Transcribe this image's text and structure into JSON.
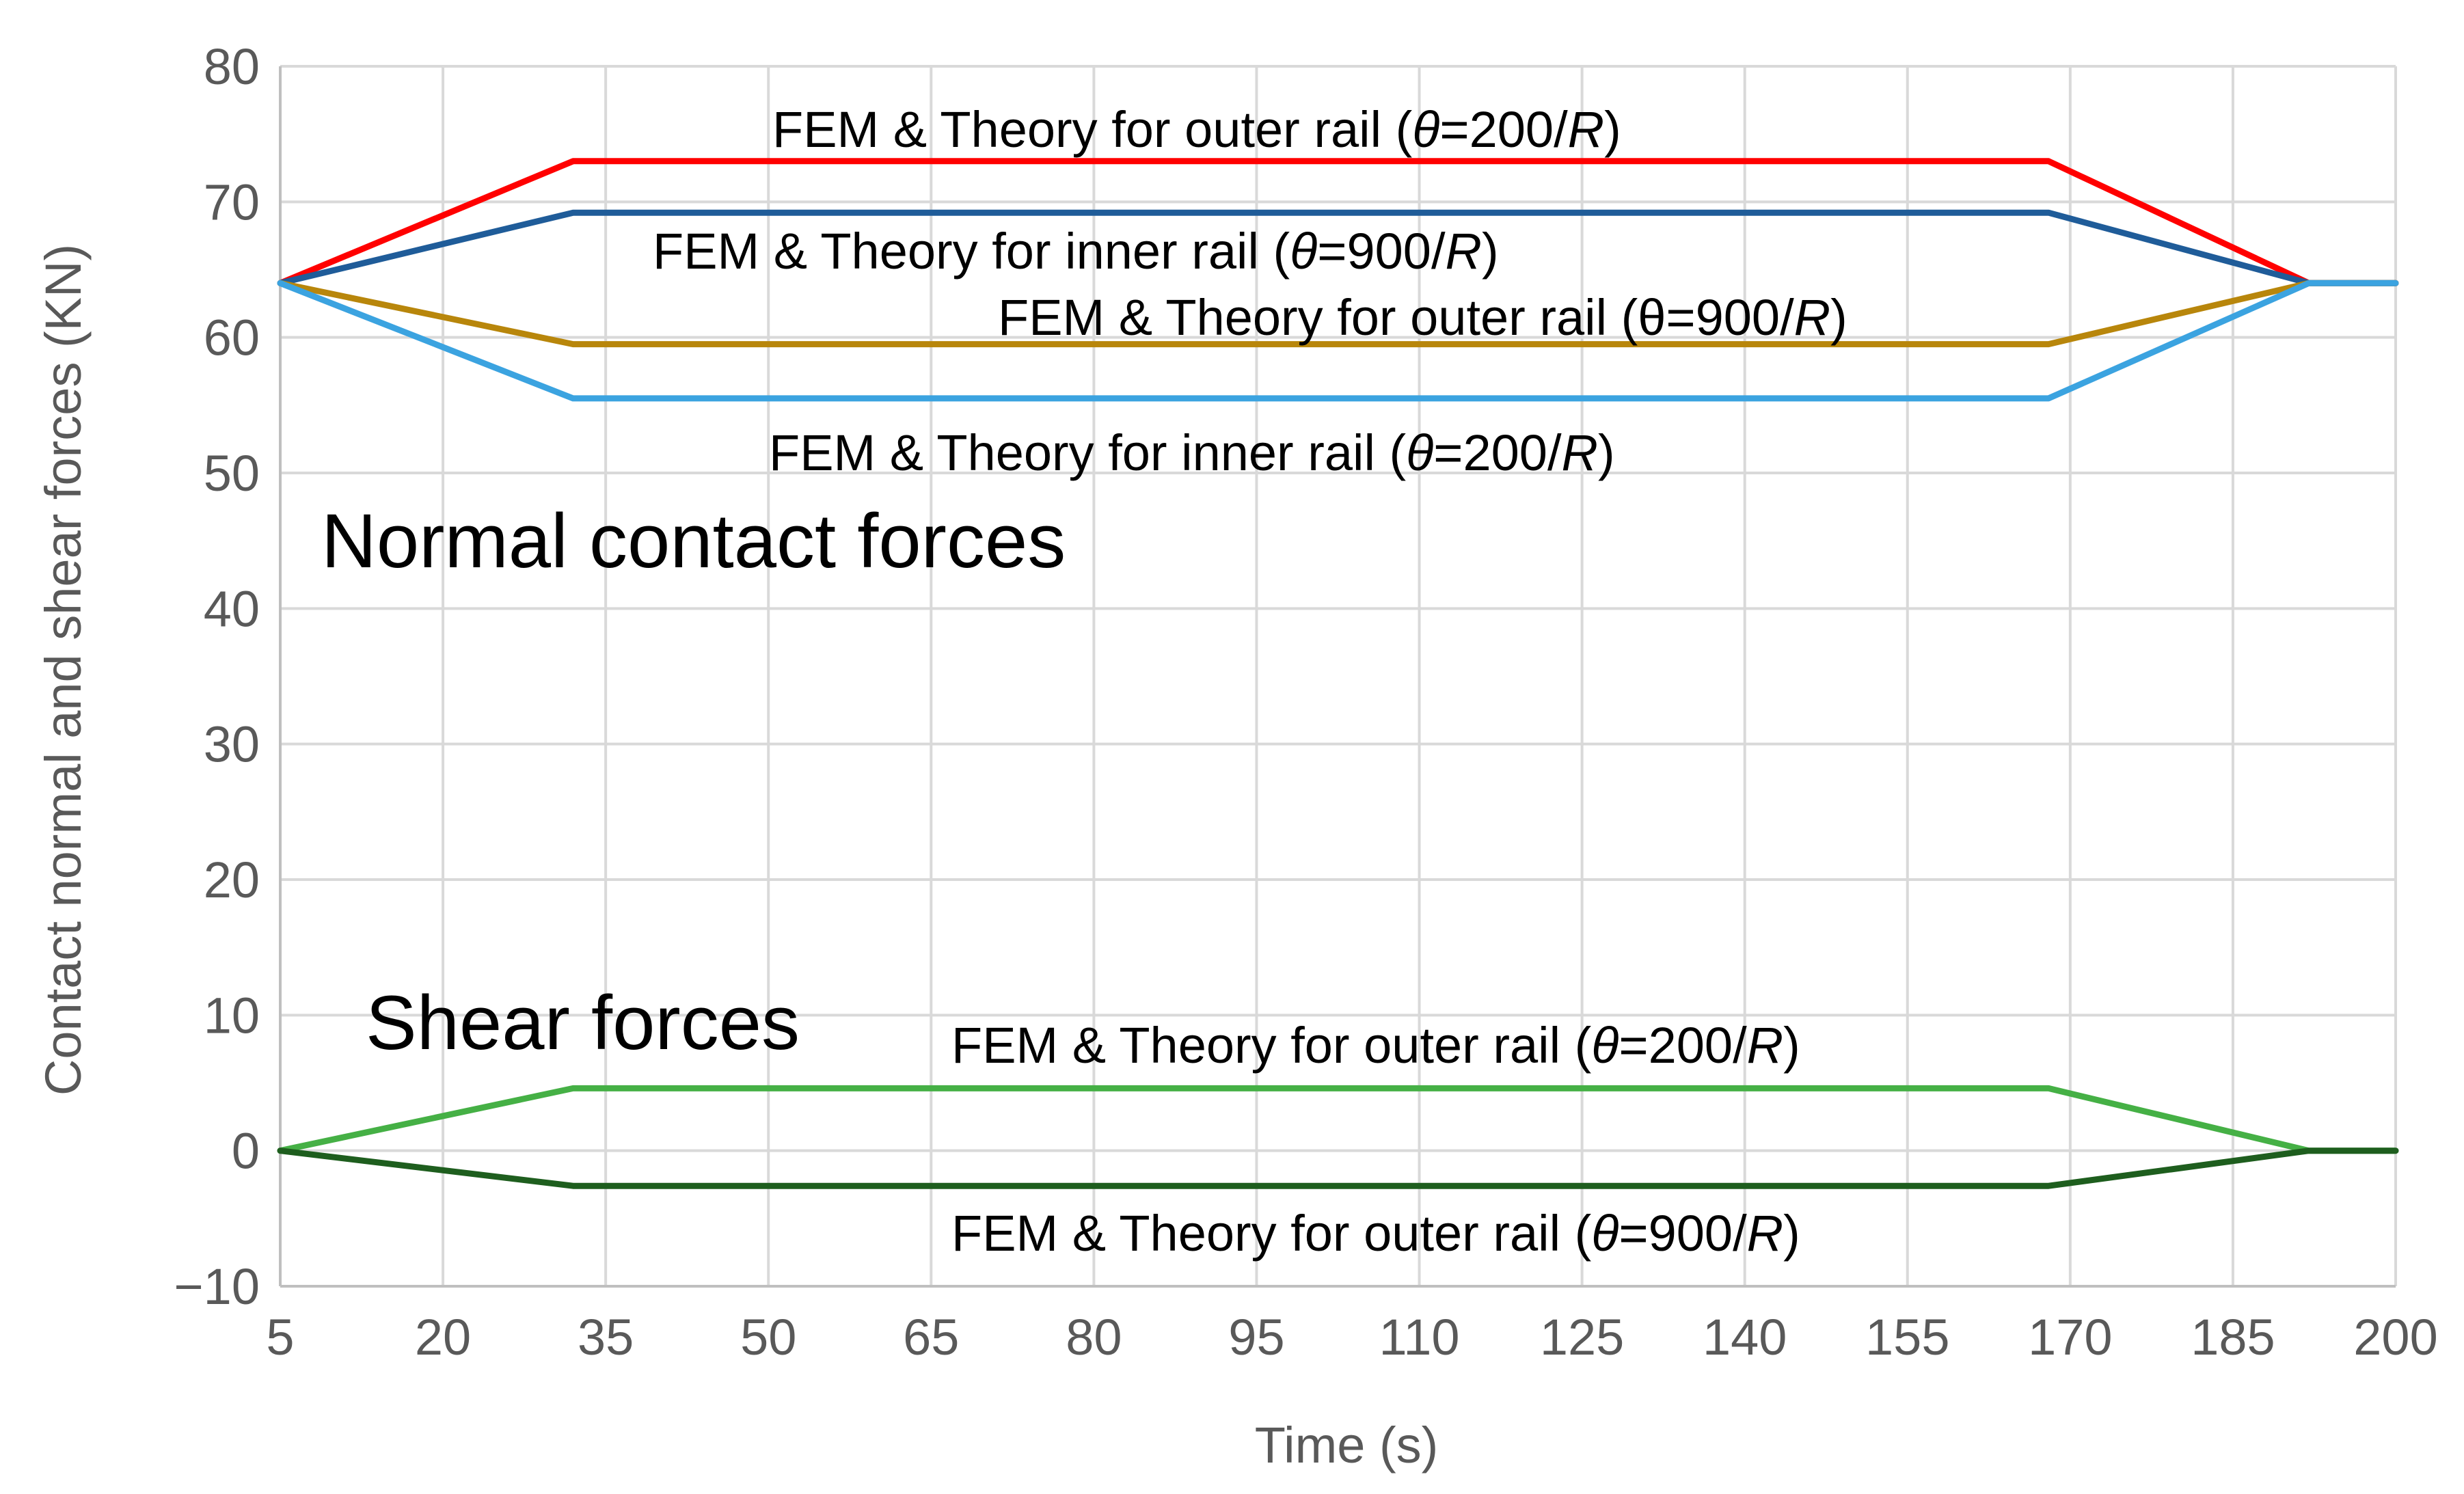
{
  "chart_data": {
    "type": "line",
    "xlabel": "Time (s)",
    "ylabel": "Contact normal and shear forces (KN)",
    "xlim": [
      5,
      200
    ],
    "ylim": [
      -10,
      80
    ],
    "xticks": [
      5,
      20,
      35,
      50,
      65,
      80,
      95,
      110,
      125,
      140,
      155,
      170,
      185,
      200
    ],
    "yticks": [
      -10,
      0,
      10,
      20,
      30,
      40,
      50,
      60,
      70,
      80
    ],
    "ytick_labels": [
      "−10",
      "0",
      "10",
      "20",
      "30",
      "40",
      "50",
      "60",
      "70",
      "80"
    ],
    "grid": true,
    "legend": "none",
    "series": [
      {
        "color": "#ff0000",
        "x": [
          5,
          32,
          168,
          192,
          200
        ],
        "y": [
          64,
          73,
          73,
          64,
          64
        ]
      },
      {
        "color": "#1f5c99",
        "x": [
          5,
          32,
          168,
          192,
          200
        ],
        "y": [
          64,
          69.2,
          69.2,
          64,
          64
        ]
      },
      {
        "color": "#b8860b",
        "x": [
          5,
          32,
          168,
          192,
          200
        ],
        "y": [
          64,
          59.5,
          59.5,
          64,
          64
        ]
      },
      {
        "color": "#3ba3e0",
        "x": [
          5,
          32,
          168,
          192,
          200
        ],
        "y": [
          64,
          55.5,
          55.5,
          64,
          64
        ]
      },
      {
        "color": "#45b045",
        "x": [
          5,
          32,
          168,
          192,
          200
        ],
        "y": [
          0,
          4.6,
          4.6,
          0,
          0
        ]
      },
      {
        "color": "#1e5e1e",
        "x": [
          5,
          32,
          168,
          192,
          200
        ],
        "y": [
          0,
          -2.6,
          -2.6,
          0,
          0
        ]
      }
    ],
    "annotations": [
      {
        "text": "FEM & Theory for outer rail (θ=200/R)",
        "prefix": "FEM & Theory for outer rail (",
        "theta": "θ",
        "eq": "=200/",
        "r": "R",
        "suffix": ")"
      },
      {
        "text": "FEM & Theory for inner rail (θ=900/R)",
        "prefix": "FEM & Theory for inner rail (",
        "theta": "θ",
        "eq": "=900/",
        "r": "R",
        "suffix": ")"
      },
      {
        "text": "FEM & Theory for outer rail (θ=900/R)",
        "prefix": "FEM & Theory for outer rail (",
        "theta": "θ",
        "eq": "=900/",
        "r": "R",
        "suffix": ")"
      },
      {
        "text": "FEM & Theory for inner rail (θ=200/R)",
        "prefix": "FEM & Theory for inner rail (",
        "theta": "θ",
        "eq": "=200/",
        "r": "R",
        "suffix": ")"
      },
      {
        "text": "FEM & Theory for outer rail (θ=200/R)",
        "prefix": "FEM & Theory for outer rail (",
        "theta": "θ",
        "eq": "=200/",
        "r": "R",
        "suffix": ")"
      },
      {
        "text": "FEM & Theory for outer rail (θ=900/R)",
        "prefix": "FEM & Theory for outer rail (",
        "theta": "θ",
        "eq": "=900/",
        "r": "R",
        "suffix": ")"
      }
    ],
    "group_labels": [
      "Normal contact forces",
      "Shear forces"
    ]
  }
}
